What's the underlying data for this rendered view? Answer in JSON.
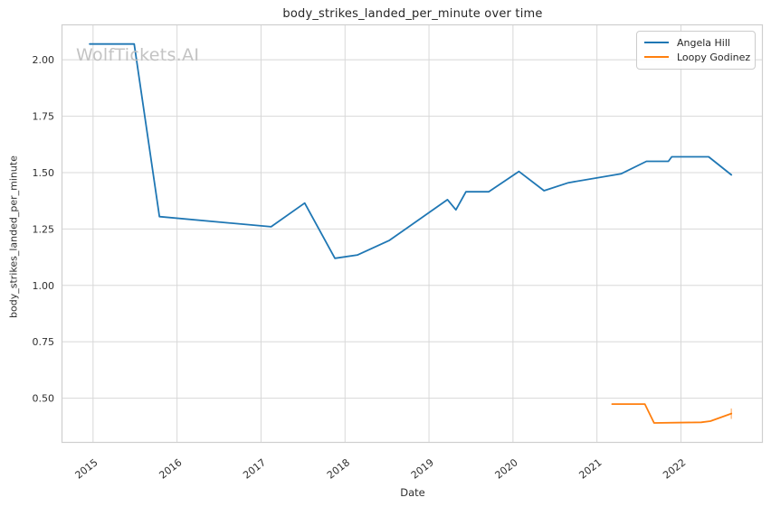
{
  "watermark": {
    "text": "WolfTickets.AI",
    "color": "#c3c3c3"
  },
  "chart_data": {
    "type": "line",
    "title": "body_strikes_landed_per_minute over time",
    "xlabel": "Date",
    "ylabel": "body_strikes_landed_per_minute",
    "xlim": [
      2014.63,
      2022.97
    ],
    "ylim": [
      0.304,
      2.155
    ],
    "grid": true,
    "legend_position": "upper right",
    "background": "#ffffff",
    "grid_color": "#d8d8d8",
    "spine_color": "#cfcfcf",
    "xticks": [
      {
        "v": 2015,
        "label": "2015"
      },
      {
        "v": 2016,
        "label": "2016"
      },
      {
        "v": 2017,
        "label": "2017"
      },
      {
        "v": 2018,
        "label": "2018"
      },
      {
        "v": 2019,
        "label": "2019"
      },
      {
        "v": 2020,
        "label": "2020"
      },
      {
        "v": 2021,
        "label": "2021"
      },
      {
        "v": 2022,
        "label": "2022"
      }
    ],
    "yticks": [
      {
        "v": 0.5,
        "label": "0.50"
      },
      {
        "v": 0.75,
        "label": "0.75"
      },
      {
        "v": 1.0,
        "label": "1.00"
      },
      {
        "v": 1.25,
        "label": "1.25"
      },
      {
        "v": 1.5,
        "label": "1.50"
      },
      {
        "v": 1.75,
        "label": "1.75"
      },
      {
        "v": 2.0,
        "label": "2.00"
      }
    ],
    "series": [
      {
        "name": "Angela Hill",
        "color": "#1f77b4",
        "points": [
          [
            2014.96,
            2.07
          ],
          [
            2015.49,
            2.07
          ],
          [
            2015.79,
            1.305
          ],
          [
            2017.12,
            1.26
          ],
          [
            2017.52,
            1.365
          ],
          [
            2017.88,
            1.12
          ],
          [
            2018.15,
            1.135
          ],
          [
            2018.53,
            1.2
          ],
          [
            2019.22,
            1.38
          ],
          [
            2019.32,
            1.335
          ],
          [
            2019.44,
            1.415
          ],
          [
            2019.71,
            1.415
          ],
          [
            2020.07,
            1.505
          ],
          [
            2020.37,
            1.42
          ],
          [
            2020.66,
            1.455
          ],
          [
            2021.29,
            1.495
          ],
          [
            2021.59,
            1.55
          ],
          [
            2021.85,
            1.55
          ],
          [
            2021.89,
            1.57
          ],
          [
            2022.33,
            1.57
          ],
          [
            2022.6,
            1.49
          ]
        ]
      },
      {
        "name": "Loopy Godinez",
        "color": "#ff7f0e",
        "points": [
          [
            2021.18,
            0.474
          ],
          [
            2021.57,
            0.474
          ],
          [
            2021.68,
            0.39
          ],
          [
            2022.24,
            0.393
          ],
          [
            2022.35,
            0.398
          ],
          [
            2022.6,
            0.432
          ]
        ],
        "end_error_bar": {
          "x": 2022.6,
          "y_low": 0.408,
          "y_high": 0.454
        }
      }
    ]
  }
}
